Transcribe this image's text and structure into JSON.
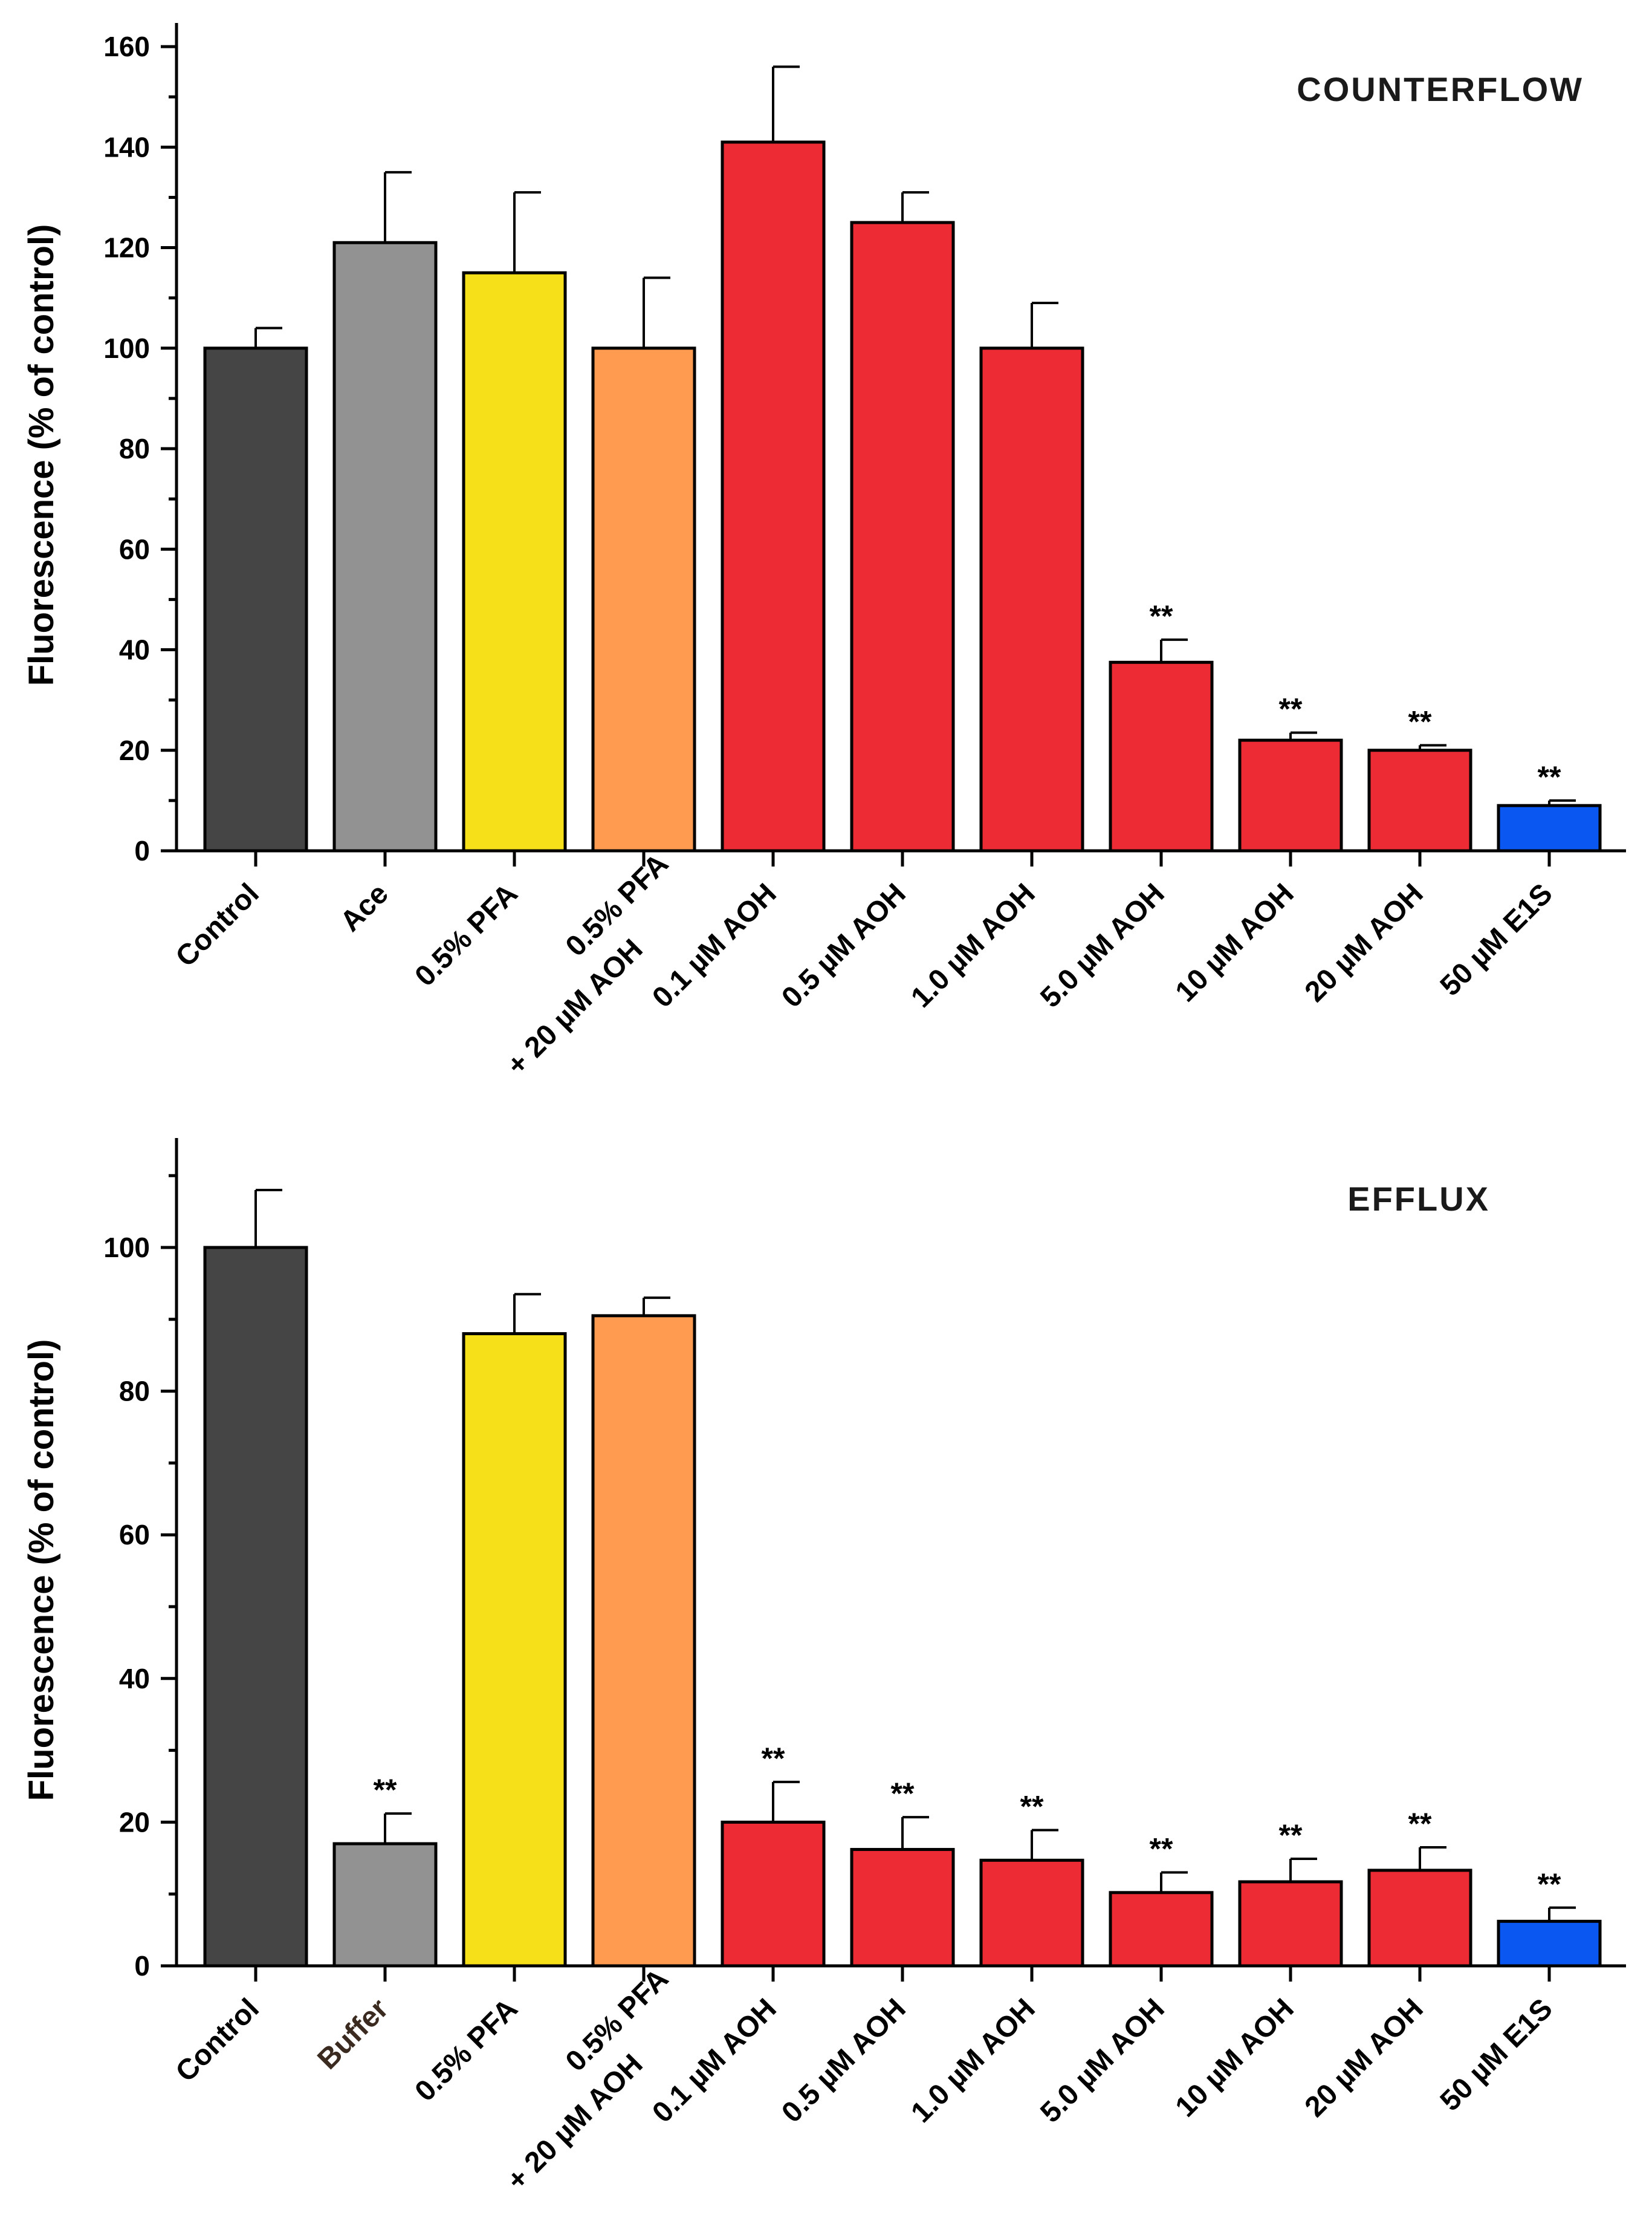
{
  "chart_data": [
    {
      "type": "bar",
      "title": "COUNTERFLOW",
      "ylabel": "Fluorescence (% of control)",
      "xlabel": "",
      "ylim": [
        0,
        165
      ],
      "yticks": [
        0,
        20,
        40,
        60,
        80,
        100,
        120,
        140,
        160
      ],
      "categories": [
        {
          "lines": [
            "Control"
          ]
        },
        {
          "lines": [
            "Ace"
          ]
        },
        {
          "lines": [
            "0.5% PFA"
          ]
        },
        {
          "lines": [
            "0.5% PFA",
            "+ 20 µM AOH"
          ]
        },
        {
          "lines": [
            "0.1 µM AOH"
          ]
        },
        {
          "lines": [
            "0.5 µM AOH"
          ]
        },
        {
          "lines": [
            "1.0 µM AOH"
          ]
        },
        {
          "lines": [
            "5.0 µM AOH"
          ]
        },
        {
          "lines": [
            "10 µM AOH"
          ]
        },
        {
          "lines": [
            "20 µM AOH"
          ]
        },
        {
          "lines": [
            "50 µM E1S"
          ]
        }
      ],
      "values": [
        100,
        121,
        115,
        100,
        141,
        125,
        100,
        37.5,
        22,
        20,
        9
      ],
      "errors": [
        4,
        14,
        16,
        14,
        15,
        6,
        9,
        4.5,
        1.5,
        1,
        1
      ],
      "significance": [
        "",
        "",
        "",
        "",
        "",
        "",
        "",
        "**",
        "**",
        "**",
        "**"
      ],
      "colors": [
        "#454545",
        "#929292",
        "#f5e01a",
        "#ff9b50",
        "#ec2b35",
        "#ec2b35",
        "#ec2b35",
        "#ec2b35",
        "#ec2b35",
        "#ec2b35",
        "#0b57f2"
      ]
    },
    {
      "type": "bar",
      "title": "EFFLUX",
      "ylabel": "Fluorescence (% of control)",
      "xlabel": "",
      "ylim": [
        0,
        115
      ],
      "yticks": [
        0,
        20,
        40,
        60,
        80,
        100
      ],
      "categories": [
        {
          "lines": [
            "Control"
          ]
        },
        {
          "lines": [
            "Buffer"
          ]
        },
        {
          "lines": [
            "0.5% PFA"
          ]
        },
        {
          "lines": [
            "0.5% PFA",
            "+ 20 µM AOH"
          ]
        },
        {
          "lines": [
            "0.1 µM AOH"
          ]
        },
        {
          "lines": [
            "0.5 µM AOH"
          ]
        },
        {
          "lines": [
            "1.0 µM AOH"
          ]
        },
        {
          "lines": [
            "5.0 µM AOH"
          ]
        },
        {
          "lines": [
            "10 µM AOH"
          ]
        },
        {
          "lines": [
            "20 µM AOH"
          ]
        },
        {
          "lines": [
            "50 µM E1S"
          ]
        }
      ],
      "values": [
        100,
        17,
        88,
        90.5,
        20,
        16.2,
        14.7,
        10.2,
        11.7,
        13.3,
        6.2
      ],
      "errors": [
        8,
        4.2,
        5.5,
        2.5,
        5.6,
        4.5,
        4.2,
        2.8,
        3.2,
        3.2,
        1.9
      ],
      "significance": [
        "",
        "**",
        "",
        "",
        "**",
        "**",
        "**",
        "**",
        "**",
        "**",
        "**"
      ],
      "colors": [
        "#454545",
        "#929292",
        "#f5e01a",
        "#ff9b50",
        "#ec2b35",
        "#ec2b35",
        "#ec2b35",
        "#ec2b35",
        "#ec2b35",
        "#ec2b35",
        "#0b57f2"
      ]
    }
  ]
}
